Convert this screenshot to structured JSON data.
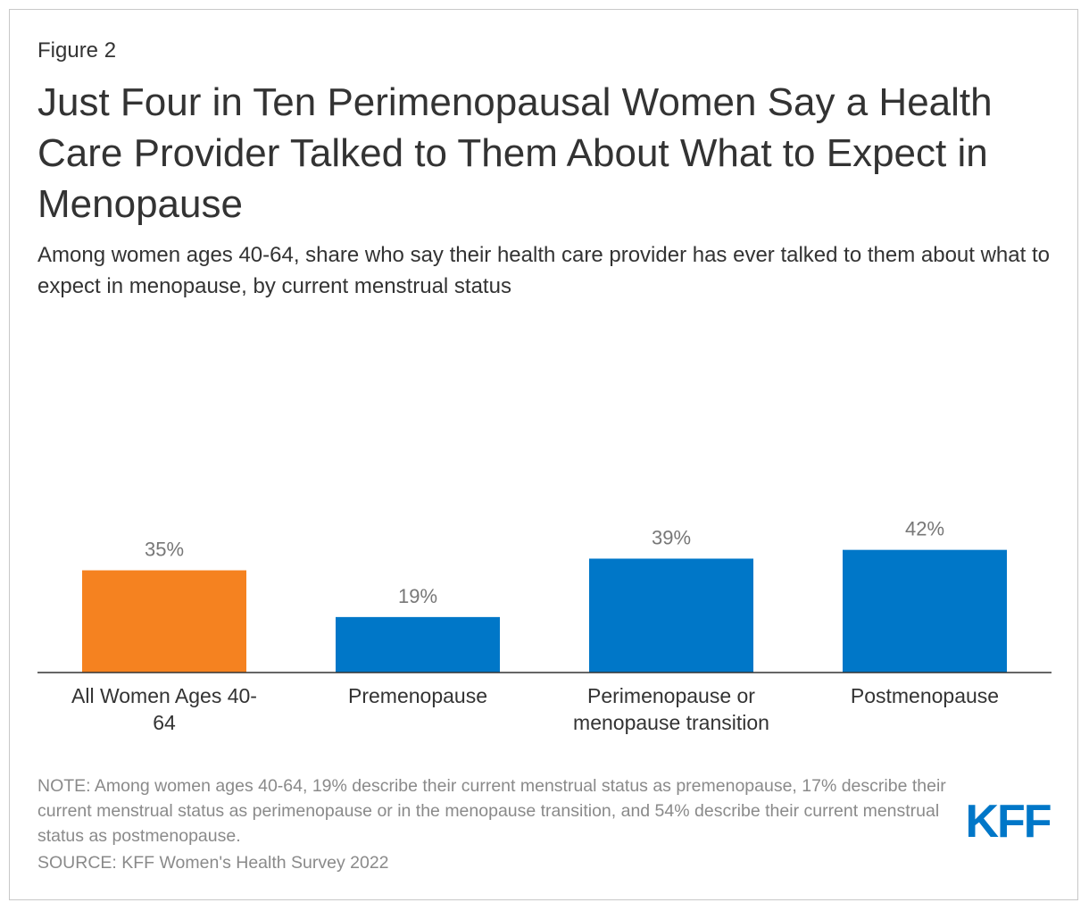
{
  "figure_label": "Figure 2",
  "title": "Just Four in Ten Perimenopausal Women Say a Health Care Provider Talked to Them About What to Expect in Menopause",
  "subtitle": "Among women ages 40-64, share who say their health care provider has ever talked to them about what to expect in menopause, by current menstrual status",
  "chart_data": {
    "type": "bar",
    "title": "Just Four in Ten Perimenopausal Women Say a Health Care Provider Talked to Them About What to Expect in Menopause",
    "xlabel": "",
    "ylabel": "",
    "ylim": [
      0,
      50
    ],
    "grid": false,
    "categories": [
      [
        "All Women Ages 40-",
        "64"
      ],
      [
        "Premenopause"
      ],
      [
        "Perimenopause or",
        "menopause transition"
      ],
      [
        "Postmenopause"
      ]
    ],
    "values": [
      35,
      19,
      39,
      42
    ],
    "value_labels": [
      "35%",
      "19%",
      "39%",
      "42%"
    ],
    "colors": [
      "#f58220",
      "#0077c8",
      "#0077c8",
      "#0077c8"
    ]
  },
  "note": "NOTE: Among women ages 40-64, 19% describe their current menstrual status as premenopause, 17% describe their current menstrual status as perimenopause or in the menopause transition, and 54% describe their current menstrual status as postmenopause.",
  "source": "SOURCE: KFF Women's Health Survey 2022",
  "logo": {
    "text": "KFF",
    "color": "#0077c8"
  }
}
